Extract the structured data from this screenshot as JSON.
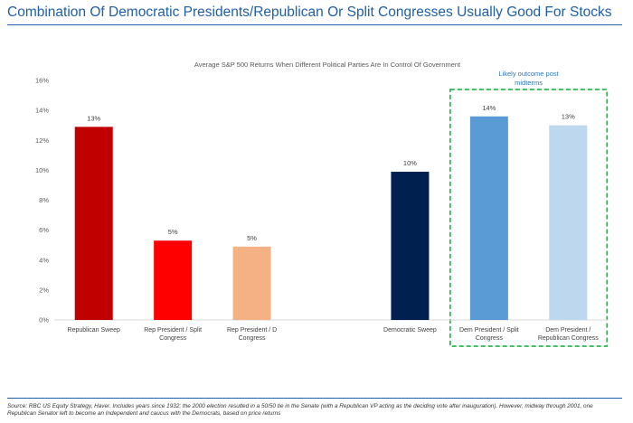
{
  "headline": "Combination Of Democratic Presidents/Republican Or Split Congresses Usually Good For Stocks",
  "source_note": "Source: RBC US Equity Strategy, Haver. Includes years since 1932; the 2000 election resulted in a 50/50 tie in the Senate (with a Republican VP acting as the deciding vote after inauguration). However, midway through 2001, one Republican Senator left to become an Independent and caucus with the Democrats, based on price returns",
  "callout_label": "Likely outcome post midterms",
  "chart_data": {
    "type": "bar",
    "title": "Average S&P 500 Returns When Different Political Parties Are In Control Of Government",
    "xlabel": "",
    "ylabel": "",
    "ylim": [
      0,
      16
    ],
    "yticks": [
      "0%",
      "2%",
      "4%",
      "6%",
      "8%",
      "10%",
      "12%",
      "14%",
      "16%"
    ],
    "grid": false,
    "categories": [
      "Republican Sweep",
      "Rep President / Split Congress",
      "Rep President / D Congress",
      "",
      "Democratic Sweep",
      "Dem President / Split Congress",
      "Dem President / Republican Congress"
    ],
    "values": [
      12.9,
      5.3,
      4.9,
      null,
      9.9,
      13.6,
      13.0
    ],
    "data_labels": [
      "13%",
      "5%",
      "5%",
      "",
      "10%",
      "14%",
      "13%"
    ],
    "colors": [
      "#c00000",
      "#ff0000",
      "#f4b183",
      null,
      "#002050",
      "#5b9bd5",
      "#bdd7ee"
    ],
    "highlight_categories": [
      "Dem President / Split Congress",
      "Dem President / Republican Congress"
    ],
    "highlight_color": "#2db552"
  }
}
